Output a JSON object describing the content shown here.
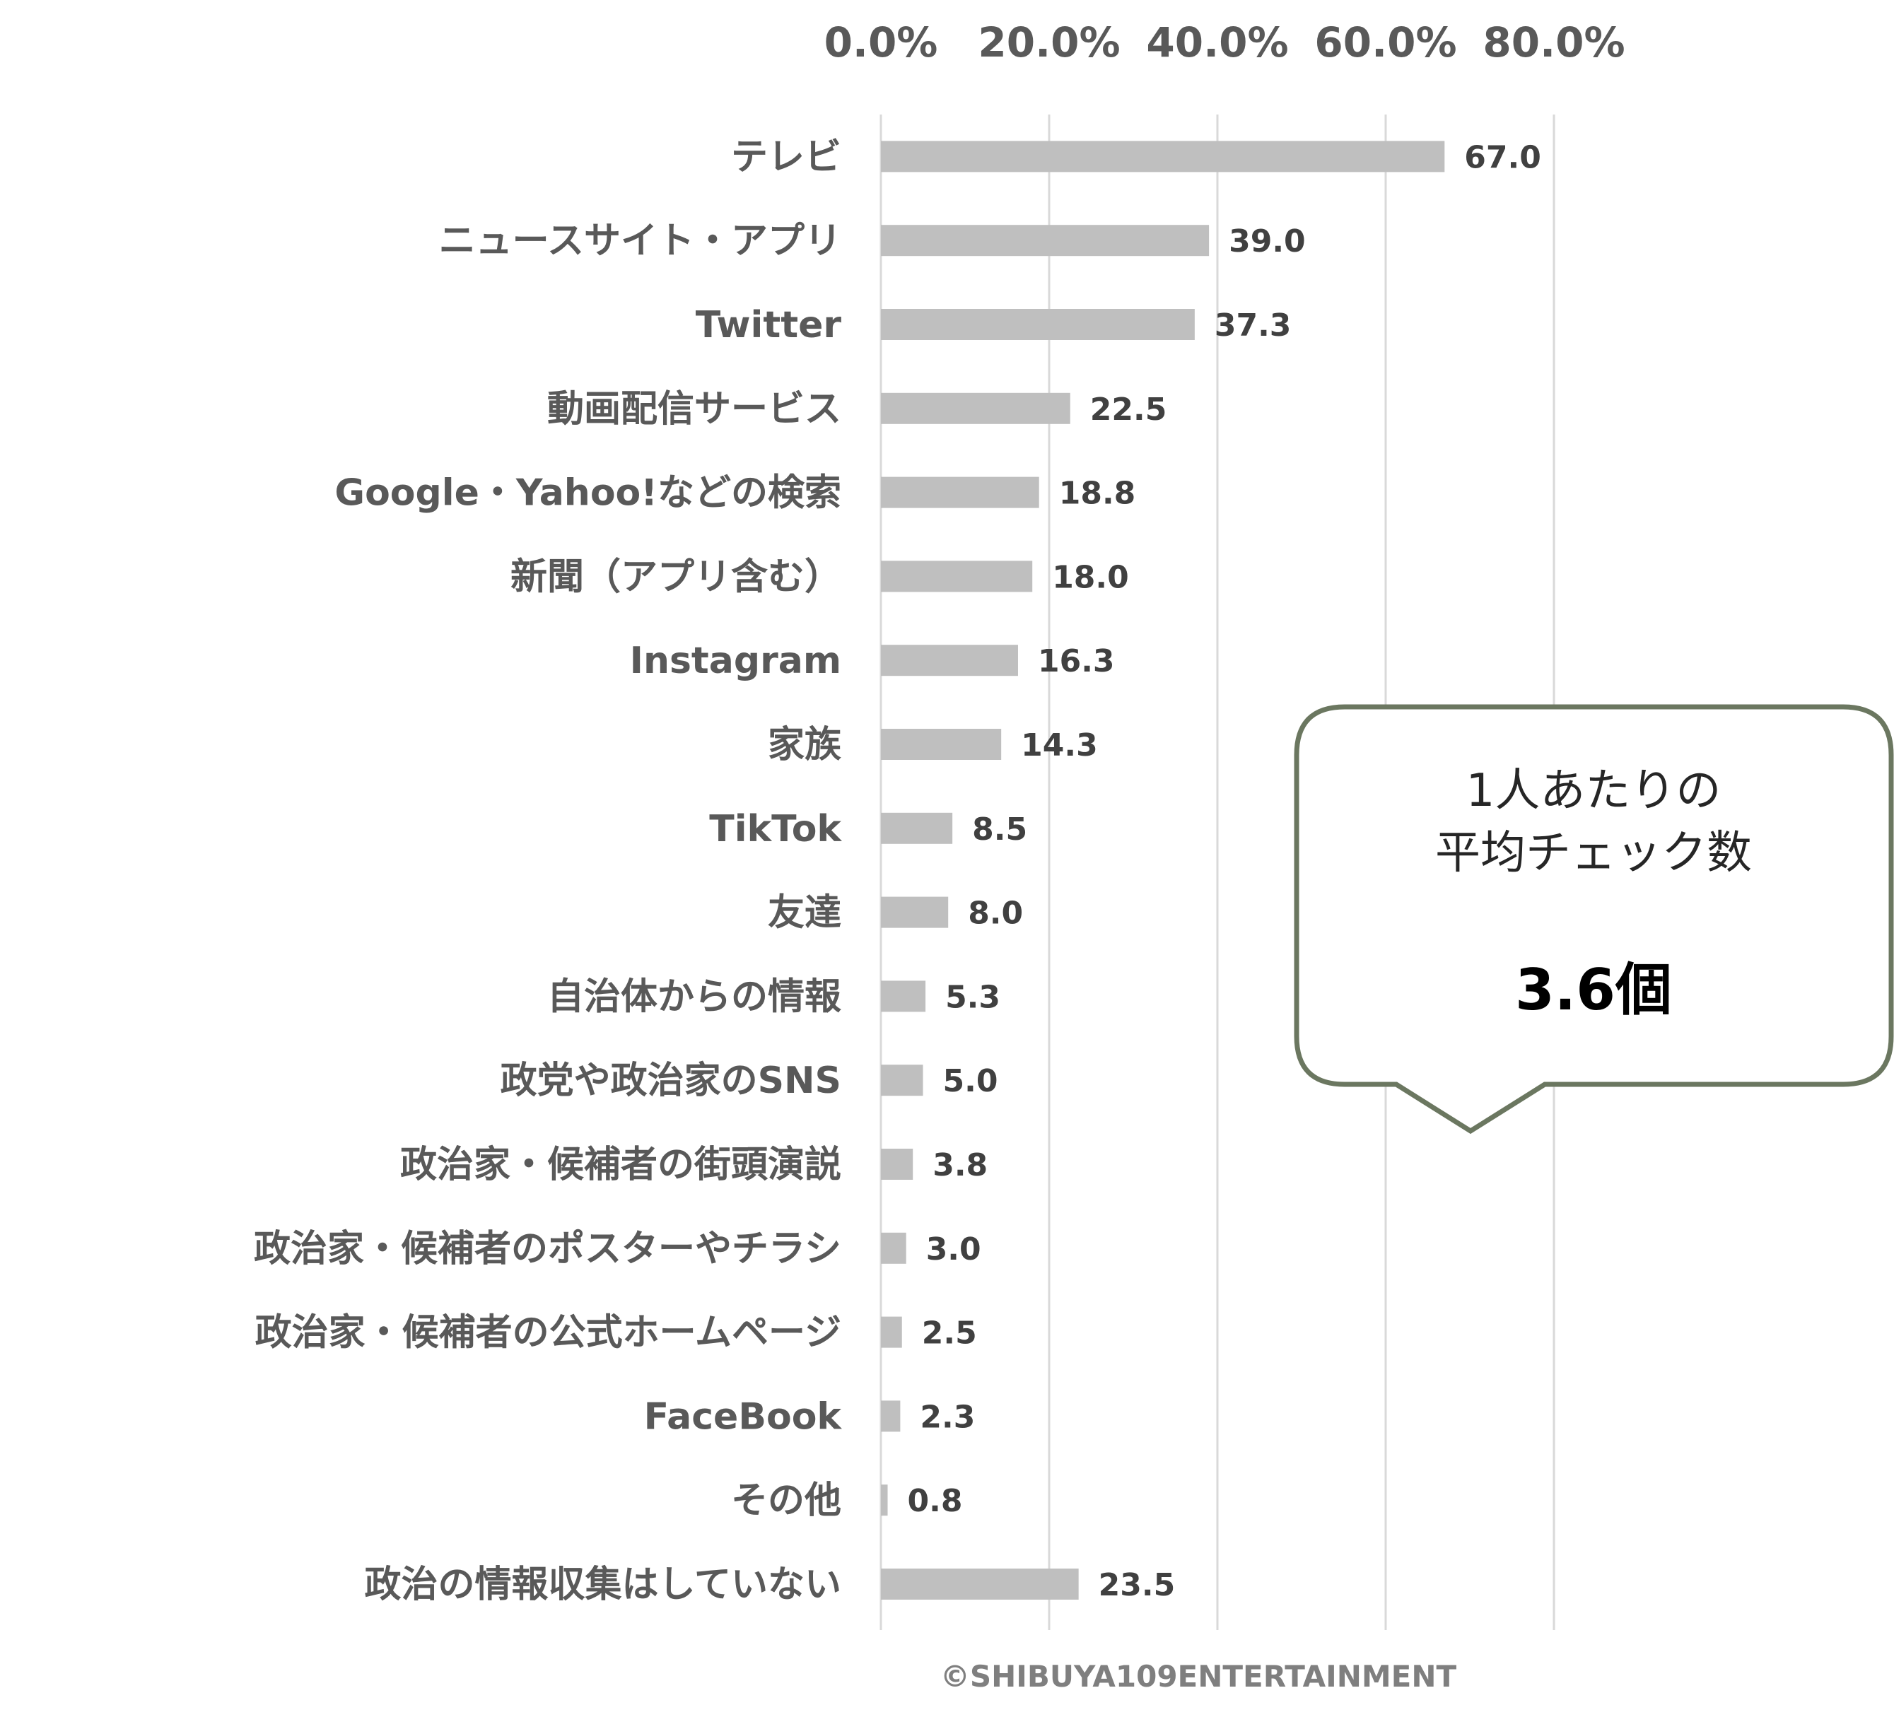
{
  "chart_data": {
    "type": "bar",
    "orientation": "horizontal",
    "categories": [
      "テレビ",
      "ニュースサイト・アプリ",
      "Twitter",
      "動画配信サービス",
      "Google・Yahoo!などの検索",
      "新聞（アプリ含む）",
      "Instagram",
      "家族",
      "TikTok",
      "友達",
      "自治体からの情報",
      "政党や政治家のSNS",
      "政治家・候補者の街頭演説",
      "政治家・候補者のポスターやチラシ",
      "政治家・候補者の公式ホームページ",
      "FaceBook",
      "その他",
      "政治の情報収集はしていない"
    ],
    "values": [
      67.0,
      39.0,
      37.3,
      22.5,
      18.8,
      18.0,
      16.3,
      14.3,
      8.5,
      8.0,
      5.3,
      5.0,
      3.8,
      3.0,
      2.5,
      2.3,
      0.8,
      23.5
    ],
    "data_labels": [
      "67.0",
      "39.0",
      "37.3",
      "22.5",
      "18.8",
      "18.0",
      "16.3",
      "14.3",
      "8.5",
      "8.0",
      "5.3",
      "5.0",
      "3.8",
      "3.0",
      "2.5",
      "2.3",
      "0.8",
      "23.5"
    ],
    "x_ticks": [
      "0.0%",
      "20.0%",
      "40.0%",
      "60.0%",
      "80.0%"
    ],
    "x_tick_values": [
      0,
      20,
      40,
      60,
      80
    ],
    "xlim": [
      0,
      80
    ],
    "axis_position": "top",
    "grid": true,
    "legend": "none",
    "title": "",
    "xlabel": "",
    "ylabel": ""
  },
  "callout": {
    "line1": "1人あたりの",
    "line2": "平均チェック数",
    "value": "3.6個"
  },
  "copyright": "©SHIBUYA109ENTERTAINMENT",
  "colors": {
    "bar": "#bfbfbf",
    "grid": "#d9d9d9",
    "callout_border": "#6b7760",
    "text": "#595959"
  }
}
